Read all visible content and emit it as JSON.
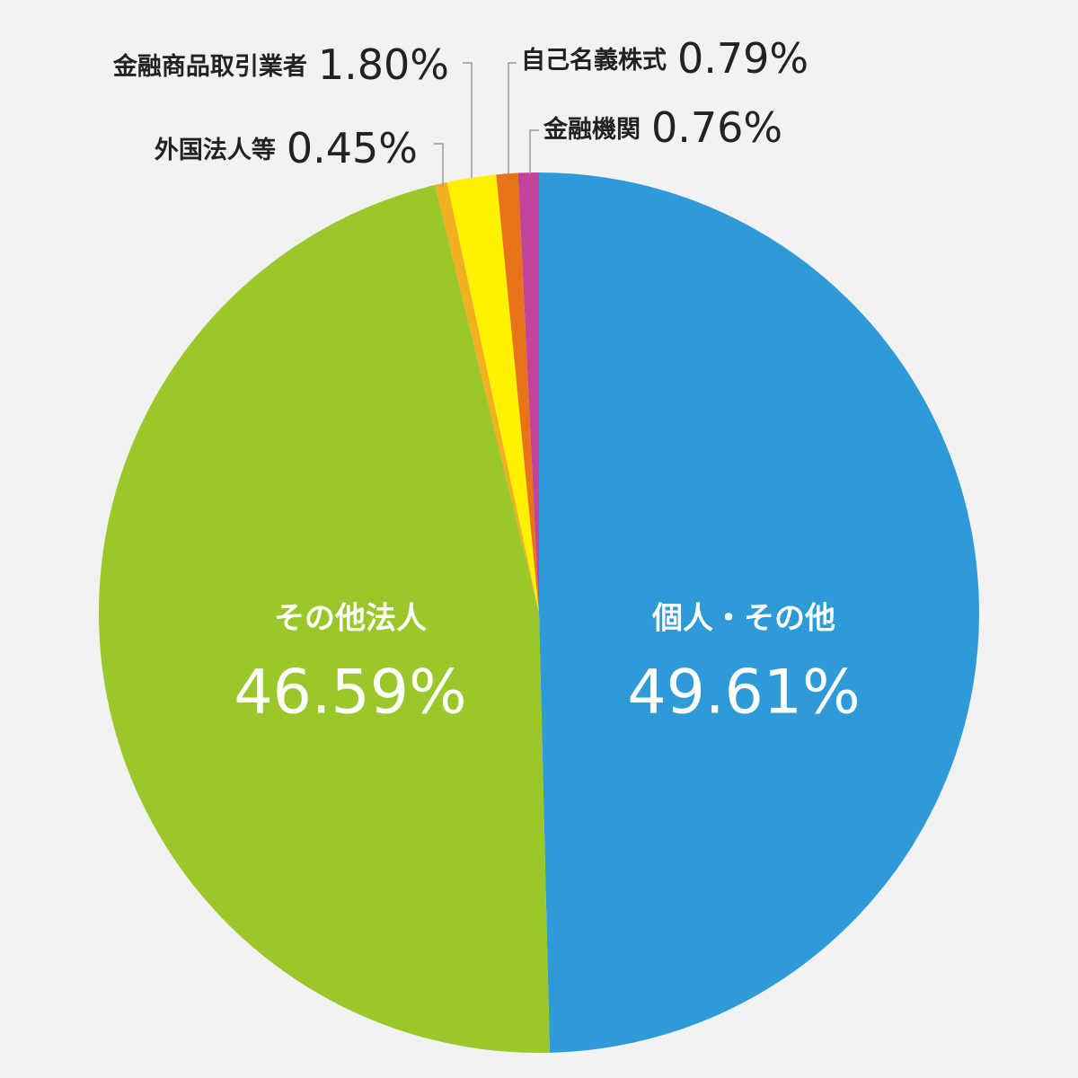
{
  "chart_data": {
    "type": "pie",
    "categories": [
      "個人・その他",
      "その他法人",
      "外国法人等",
      "金融商品取引業者",
      "自己名義株式",
      "金融機関"
    ],
    "values": [
      49.61,
      46.59,
      0.45,
      1.8,
      0.79,
      0.76
    ],
    "value_labels": [
      "49.61%",
      "46.59%",
      "0.45%",
      "1.80%",
      "0.79%",
      "0.76%"
    ],
    "colors": [
      "#2e9ad8",
      "#9ac82a",
      "#f0b020",
      "#fff200",
      "#e8731a",
      "#c2449a"
    ]
  }
}
